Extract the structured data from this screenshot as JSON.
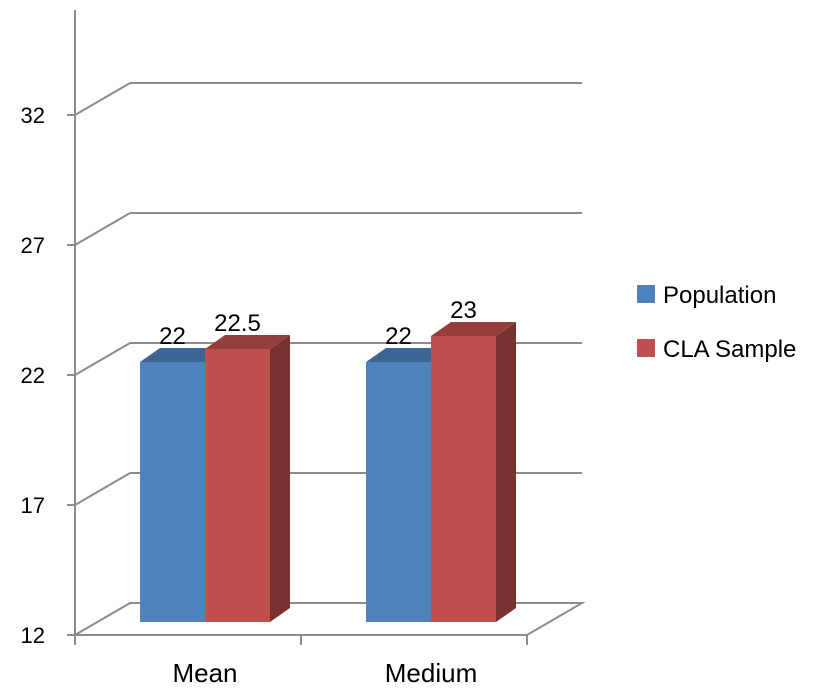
{
  "chart_data": {
    "type": "bar",
    "categories": [
      "Mean",
      "Medium"
    ],
    "series": [
      {
        "name": "Population",
        "values": [
          22,
          22
        ],
        "color": "#4F81BD"
      },
      {
        "name": "CLA Sample",
        "values": [
          22.5,
          23
        ],
        "color": "#C0504D"
      }
    ],
    "data_labels": [
      [
        "22",
        "22.5"
      ],
      [
        "22",
        "23"
      ]
    ],
    "yticks": [
      12,
      17,
      22,
      27,
      32
    ],
    "ylim": [
      12,
      34
    ],
    "grid": true,
    "three_d": true,
    "legend_position": "right"
  }
}
